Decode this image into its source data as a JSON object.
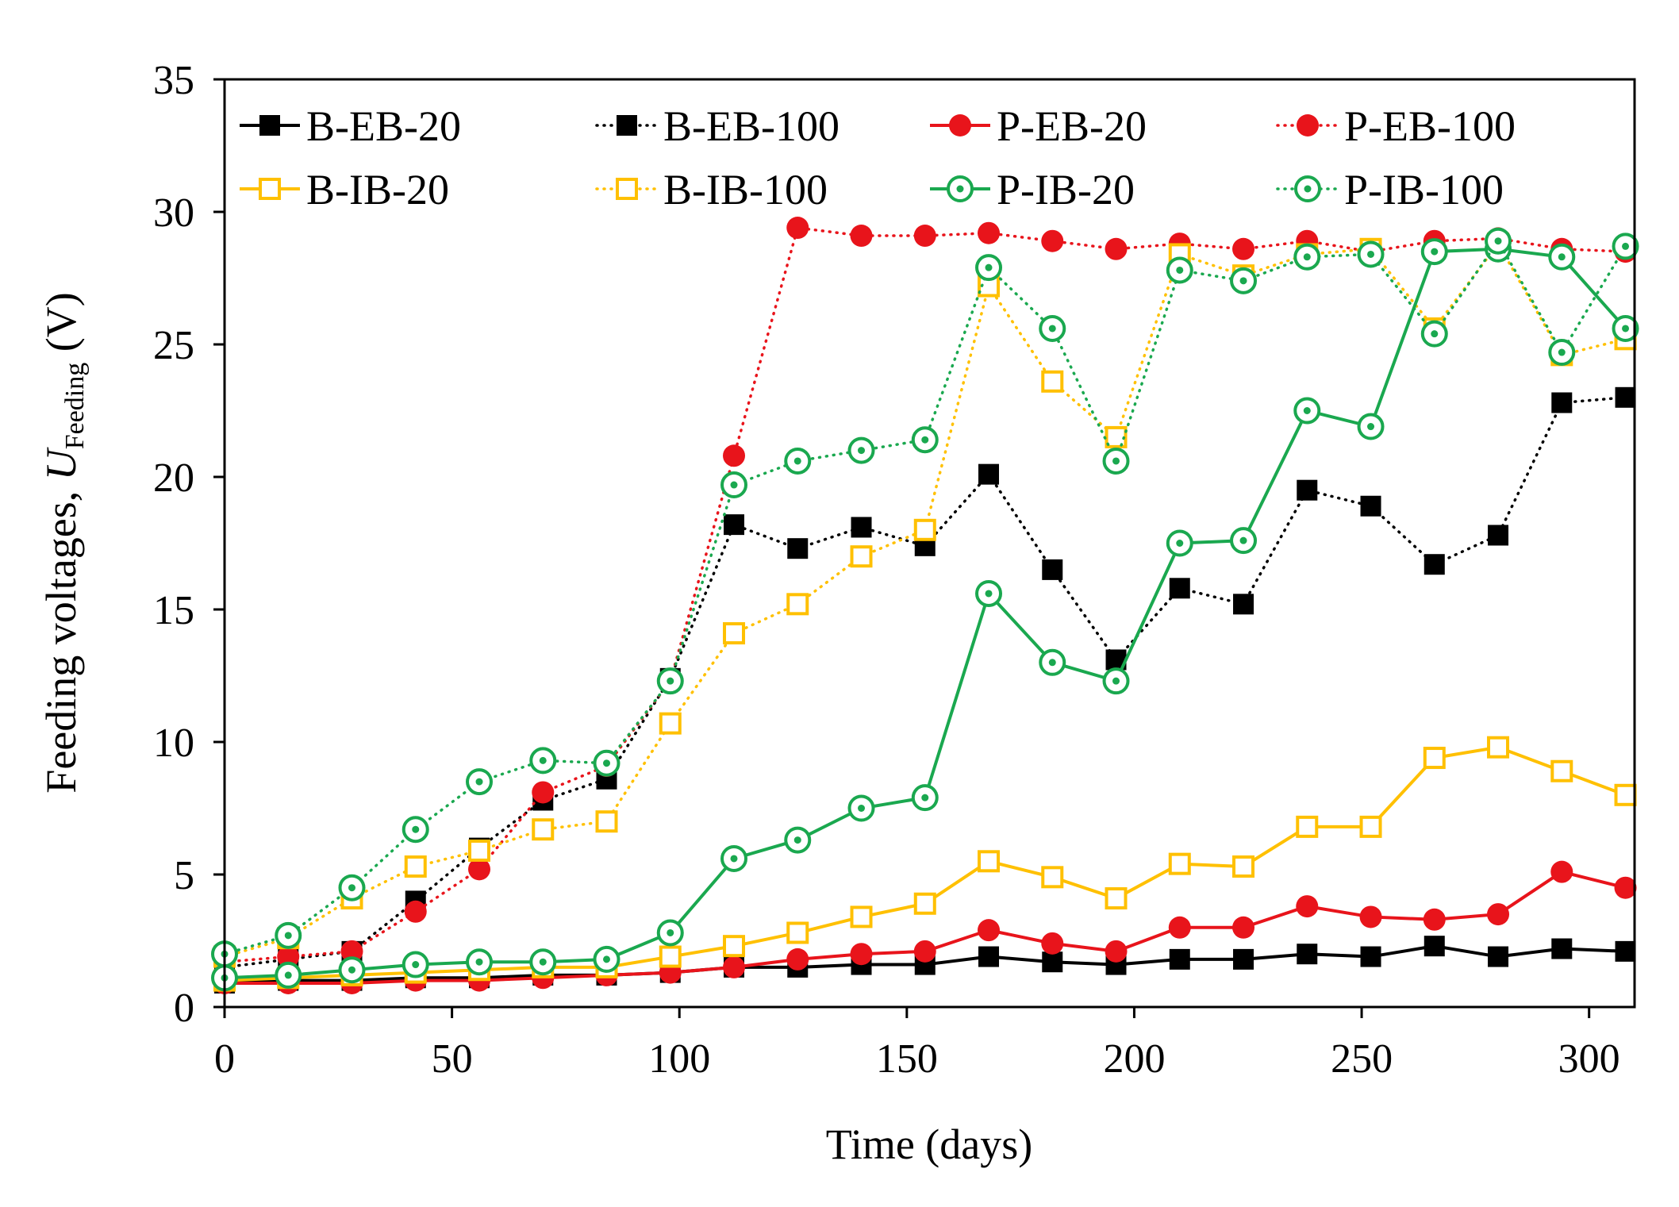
{
  "chart_data": {
    "type": "line",
    "title": "",
    "xlabel": "Time (days)",
    "ylabel": {
      "prefix": "Feeding voltages, ",
      "symbol": "U",
      "subscript": "Feeding",
      "suffix": " (V)"
    },
    "xlim": [
      0,
      310
    ],
    "ylim": [
      0,
      35
    ],
    "xticks": [
      0,
      50,
      100,
      150,
      200,
      250,
      300
    ],
    "yticks": [
      0,
      5,
      10,
      15,
      20,
      25,
      30,
      35
    ],
    "grid": false,
    "legend_position": "top",
    "x": [
      0,
      14,
      28,
      42,
      56,
      70,
      84,
      98,
      112,
      126,
      140,
      154,
      168,
      182,
      196,
      210,
      224,
      238,
      252,
      266,
      280,
      294,
      308
    ],
    "series": [
      {
        "name": "B-EB-20",
        "color": "#000000",
        "marker": "square-filled",
        "line": "solid",
        "values": [
          0.9,
          1.0,
          1.0,
          1.1,
          1.1,
          1.2,
          1.2,
          1.3,
          1.5,
          1.5,
          1.6,
          1.6,
          1.9,
          1.7,
          1.6,
          1.8,
          1.8,
          2.0,
          1.9,
          2.3,
          1.9,
          2.2,
          2.1
        ]
      },
      {
        "name": "B-EB-100",
        "color": "#000000",
        "marker": "square-filled",
        "line": "dotted",
        "values": [
          1.5,
          1.8,
          2.1,
          4.0,
          6.0,
          7.8,
          8.6,
          12.4,
          18.2,
          17.3,
          18.1,
          17.4,
          20.1,
          16.5,
          13.1,
          15.8,
          15.2,
          19.5,
          18.9,
          16.7,
          17.8,
          22.8,
          23.0
        ]
      },
      {
        "name": "P-EB-20",
        "color": "#e8141b",
        "marker": "circle-filled",
        "line": "solid",
        "values": [
          0.9,
          0.9,
          0.9,
          1.0,
          1.0,
          1.1,
          1.2,
          1.3,
          1.5,
          1.8,
          2.0,
          2.1,
          2.9,
          2.4,
          2.1,
          3.0,
          3.0,
          3.8,
          3.4,
          3.3,
          3.5,
          5.1,
          4.5
        ]
      },
      {
        "name": "P-EB-100",
        "color": "#e8141b",
        "marker": "circle-filled",
        "line": "dotted",
        "values": [
          1.7,
          1.9,
          2.1,
          3.6,
          5.2,
          8.1,
          9.1,
          12.3,
          20.8,
          29.4,
          29.1,
          29.1,
          29.2,
          28.9,
          28.6,
          28.8,
          28.6,
          28.9,
          28.5,
          28.9,
          29.0,
          28.6,
          28.5
        ]
      },
      {
        "name": "B-IB-20",
        "color": "#ffc000",
        "marker": "square-open",
        "line": "solid",
        "values": [
          1.0,
          1.1,
          1.2,
          1.3,
          1.4,
          1.5,
          1.5,
          1.9,
          2.3,
          2.8,
          3.4,
          3.9,
          5.5,
          4.9,
          4.1,
          5.4,
          5.3,
          6.8,
          6.8,
          9.4,
          9.8,
          8.9,
          8.0
        ]
      },
      {
        "name": "B-IB-100",
        "color": "#ffc000",
        "marker": "square-open",
        "line": "dotted",
        "values": [
          1.9,
          2.6,
          4.1,
          5.3,
          5.9,
          6.7,
          7.0,
          10.7,
          14.1,
          15.2,
          17.0,
          18.0,
          27.2,
          23.6,
          21.5,
          28.4,
          27.6,
          28.4,
          28.6,
          25.6,
          28.8,
          24.6,
          25.2
        ]
      },
      {
        "name": "P-IB-20",
        "color": "#1aa84f",
        "marker": "circle-open",
        "line": "solid",
        "values": [
          1.1,
          1.2,
          1.4,
          1.6,
          1.7,
          1.7,
          1.8,
          2.8,
          5.6,
          6.3,
          7.5,
          7.9,
          15.6,
          13.0,
          12.3,
          17.5,
          17.6,
          22.5,
          21.9,
          28.5,
          28.6,
          28.3,
          25.6
        ]
      },
      {
        "name": "P-IB-100",
        "color": "#1aa84f",
        "marker": "circle-open",
        "line": "dotted",
        "values": [
          2.0,
          2.7,
          4.5,
          6.7,
          8.5,
          9.3,
          9.2,
          12.3,
          19.7,
          20.6,
          21.0,
          21.4,
          27.9,
          25.6,
          20.6,
          27.8,
          27.4,
          28.3,
          28.4,
          25.4,
          28.9,
          24.7,
          28.7
        ]
      }
    ]
  }
}
